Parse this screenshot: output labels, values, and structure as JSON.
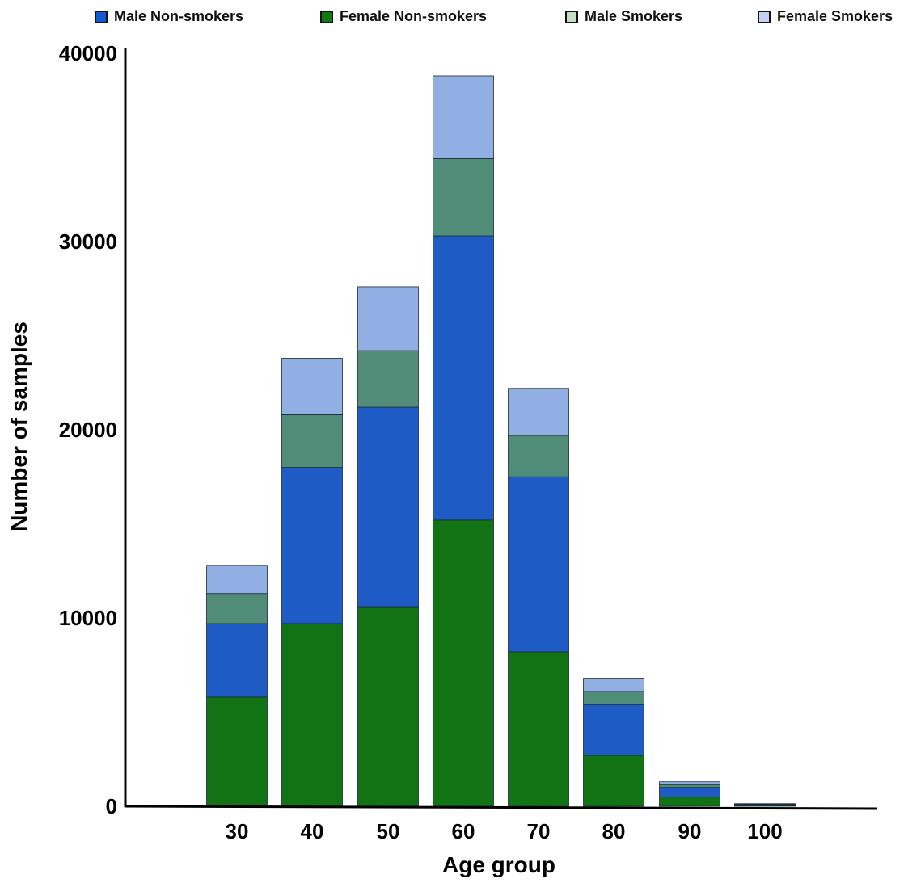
{
  "chart_data": {
    "type": "bar",
    "stacked": true,
    "categories": [
      "30",
      "40",
      "50",
      "60",
      "70",
      "80",
      "90",
      "100"
    ],
    "series": [
      {
        "name": "Female Non-smokers",
        "color": "#127314",
        "values": [
          5800,
          9700,
          10600,
          15200,
          8200,
          2700,
          500,
          40
        ]
      },
      {
        "name": "Male Non-smokers",
        "color": "#1e5bc4",
        "values": [
          3900,
          8300,
          10600,
          15100,
          9300,
          2700,
          500,
          40
        ]
      },
      {
        "name": "Male Smokers",
        "color": "#508c78",
        "values": [
          1600,
          2800,
          3000,
          4100,
          2200,
          700,
          150,
          30
        ]
      },
      {
        "name": "Female Smokers",
        "color": "#91afe2",
        "values": [
          1500,
          3000,
          3400,
          4400,
          2500,
          700,
          150,
          30
        ]
      }
    ],
    "xlabel": "Age group",
    "ylabel": "Number of samples",
    "ylim": [
      0,
      40000
    ],
    "yticks": [
      0,
      10000,
      20000,
      30000,
      40000
    ],
    "grid": false,
    "legend_position": "top"
  },
  "legend": [
    {
      "label": "Male Non-smokers",
      "color": "#1259d6"
    },
    {
      "label": "Female Non-smokers",
      "color": "#0e7a10"
    },
    {
      "label": "Male Smokers",
      "color": "#c5dfc6"
    },
    {
      "label": "Female Smokers",
      "color": "#c3d1f7"
    }
  ]
}
